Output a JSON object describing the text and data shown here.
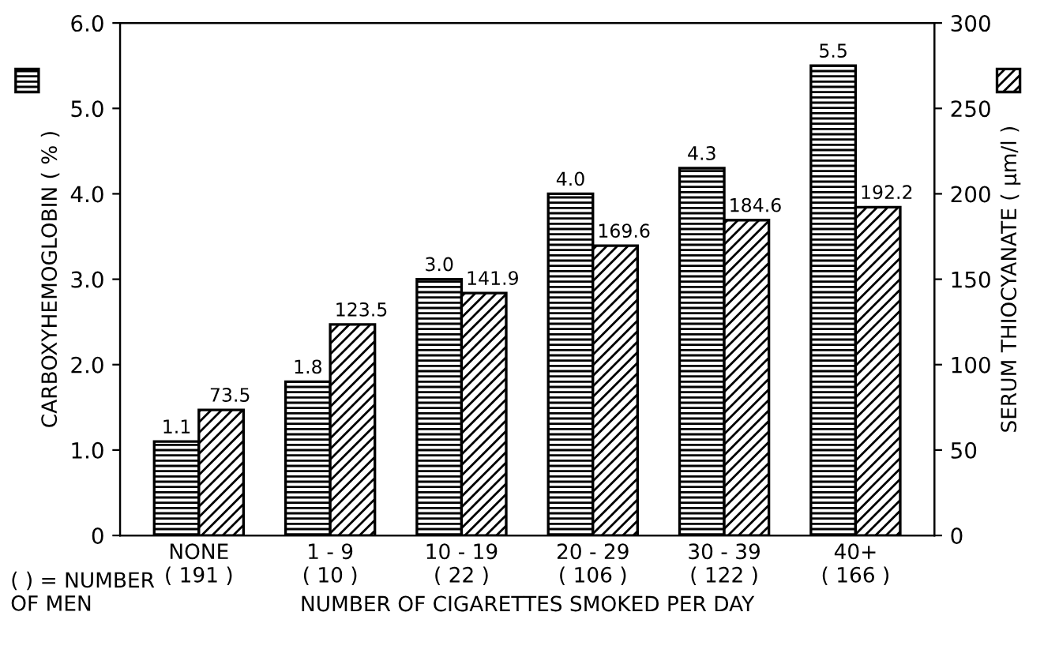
{
  "chart_data": {
    "type": "bar",
    "categories": [
      "NONE\n( 191 )",
      "1 - 9\n( 10 )",
      "10 - 19\n( 22 )",
      "20 - 29\n( 106 )",
      "30 - 39\n( 122 )",
      "40+\n( 166 )"
    ],
    "series": [
      {
        "color": "#000000",
        "values": [
          1.1,
          1.8,
          3.0,
          4.0,
          4.3,
          5.5
        ],
        "value_labels": [
          "1.1",
          "1.8",
          "3.0",
          "4.0",
          "4.3",
          "5.5"
        ]
      },
      {
        "color": "#000000",
        "axis": "y2",
        "values": [
          73.5,
          123.5,
          141.9,
          169.6,
          184.6,
          192.2
        ],
        "value_labels": [
          "73.5",
          "123.5",
          "141.9",
          "169.6",
          "184.6",
          "192.2"
        ]
      }
    ],
    "xlabel": "NUMBER OF CIGARETTES SMOKED PER DAY",
    "ylabel": "CARBOXYHEMOGLOBIN ( % )",
    "y2label": "SERUM THIOCYANATE ( μm/l )",
    "ylim": [
      0,
      6
    ],
    "yticks": [
      0,
      {
        "value": 1,
        "label": "1.0"
      },
      {
        "value": 2,
        "label": "2.0"
      },
      {
        "value": 3,
        "label": "3.0"
      },
      {
        "value": 4,
        "label": "4.0"
      },
      {
        "value": 5,
        "label": "5.0"
      },
      {
        "value": 6,
        "label": "6.0"
      }
    ],
    "y2lim": [
      0,
      300
    ],
    "y2ticks": [
      0,
      50,
      100,
      150,
      200,
      250,
      300
    ],
    "annotations": [
      "( ) = NUMBER\nOF MEN"
    ],
    "grid": false,
    "legend": false
  }
}
